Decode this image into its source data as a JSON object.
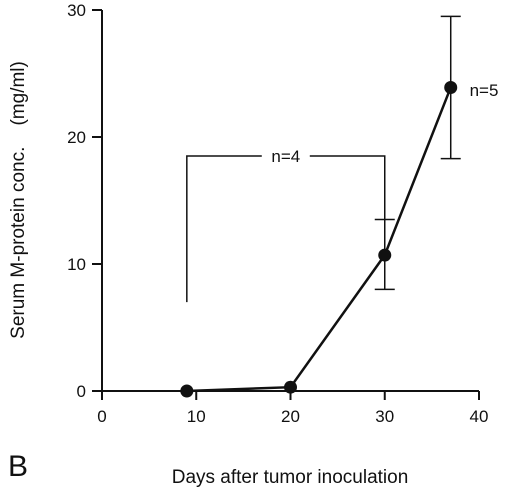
{
  "chart_data": {
    "type": "line",
    "panel_label": "B",
    "xlabel": "Days after tumor inoculation",
    "ylabel": "Serum M-protein conc.    (mg/ml)",
    "xlim": [
      0,
      40
    ],
    "ylim": [
      0,
      30
    ],
    "xticks": [
      0,
      10,
      20,
      30,
      40
    ],
    "yticks": [
      0,
      10,
      20,
      30
    ],
    "grid": false,
    "series": [
      {
        "x": [
          9,
          20,
          30,
          37
        ],
        "y": [
          0,
          0.3,
          10.7,
          23.9
        ],
        "error_low": [
          null,
          null,
          8.0,
          18.3
        ],
        "error_high": [
          null,
          null,
          13.5,
          29.5
        ]
      }
    ],
    "annotations": [
      {
        "text": "n=4",
        "type": "bracket",
        "x_start": 9,
        "x_end": 30,
        "y_level": 18.5,
        "left_drop_to": 7.0,
        "right_drop_to": 11.2
      },
      {
        "text": "n=5",
        "type": "label",
        "x": 39,
        "y": 23.7
      }
    ]
  }
}
